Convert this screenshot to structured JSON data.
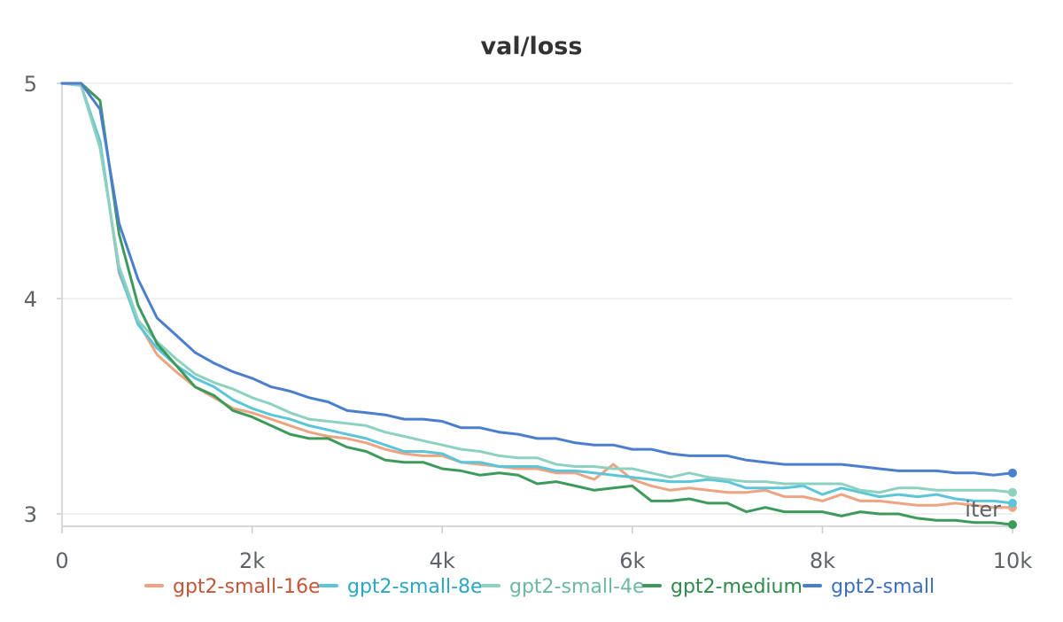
{
  "chart_data": {
    "type": "line",
    "title": "val/loss",
    "xlabel": "iter",
    "ylabel": "",
    "xlim": [
      0,
      10000
    ],
    "ylim": [
      2.94,
      5.0
    ],
    "grid": true,
    "legend_position": "bottom",
    "x_ticks": [
      {
        "value": 0,
        "label": "0"
      },
      {
        "value": 2000,
        "label": "2k"
      },
      {
        "value": 4000,
        "label": "4k"
      },
      {
        "value": 6000,
        "label": "6k"
      },
      {
        "value": 8000,
        "label": "8k"
      },
      {
        "value": 10000,
        "label": "10k"
      }
    ],
    "y_ticks": [
      {
        "value": 5,
        "label": "5"
      },
      {
        "value": 4,
        "label": "4"
      },
      {
        "value": 3,
        "label": "3"
      }
    ],
    "x": [
      0,
      200,
      400,
      600,
      800,
      1000,
      1200,
      1400,
      1600,
      1800,
      2000,
      2200,
      2400,
      2600,
      2800,
      3000,
      3200,
      3400,
      3600,
      3800,
      4000,
      4200,
      4400,
      4600,
      4800,
      5000,
      5200,
      5400,
      5600,
      5800,
      6000,
      6200,
      6400,
      6600,
      6800,
      7000,
      7200,
      7400,
      7600,
      7800,
      8000,
      8200,
      8400,
      8600,
      8800,
      9000,
      9200,
      9400,
      9600,
      9800,
      10000
    ],
    "series": [
      {
        "name": "gpt2-small-16e",
        "color": "#eca483",
        "label_color": "#c4563a",
        "values": [
          5.0,
          4.99,
          4.73,
          4.12,
          3.89,
          3.74,
          3.66,
          3.59,
          3.54,
          3.49,
          3.47,
          3.44,
          3.41,
          3.38,
          3.36,
          3.35,
          3.33,
          3.3,
          3.28,
          3.27,
          3.27,
          3.24,
          3.23,
          3.22,
          3.21,
          3.21,
          3.19,
          3.19,
          3.16,
          3.23,
          3.16,
          3.13,
          3.11,
          3.12,
          3.11,
          3.1,
          3.1,
          3.11,
          3.08,
          3.08,
          3.06,
          3.09,
          3.06,
          3.06,
          3.05,
          3.04,
          3.04,
          3.05,
          3.04,
          3.03,
          3.03
        ]
      },
      {
        "name": "gpt2-small-8e",
        "color": "#5bc5da",
        "label_color": "#2aa8c0",
        "values": [
          5.0,
          4.99,
          4.73,
          4.13,
          3.88,
          3.77,
          3.69,
          3.63,
          3.59,
          3.53,
          3.49,
          3.46,
          3.44,
          3.41,
          3.39,
          3.37,
          3.35,
          3.32,
          3.29,
          3.29,
          3.28,
          3.24,
          3.24,
          3.22,
          3.22,
          3.22,
          3.2,
          3.2,
          3.19,
          3.18,
          3.17,
          3.16,
          3.15,
          3.15,
          3.16,
          3.15,
          3.12,
          3.12,
          3.12,
          3.13,
          3.09,
          3.12,
          3.1,
          3.08,
          3.09,
          3.08,
          3.09,
          3.07,
          3.06,
          3.06,
          3.05
        ]
      },
      {
        "name": "gpt2-small-4e",
        "color": "#8ed1c0",
        "label_color": "#6cb9a6",
        "values": [
          5.0,
          4.99,
          4.7,
          4.15,
          3.9,
          3.8,
          3.72,
          3.65,
          3.61,
          3.58,
          3.54,
          3.51,
          3.47,
          3.44,
          3.43,
          3.42,
          3.41,
          3.38,
          3.36,
          3.34,
          3.32,
          3.3,
          3.29,
          3.27,
          3.26,
          3.26,
          3.23,
          3.22,
          3.22,
          3.21,
          3.21,
          3.19,
          3.17,
          3.19,
          3.17,
          3.16,
          3.15,
          3.15,
          3.14,
          3.14,
          3.14,
          3.14,
          3.11,
          3.1,
          3.12,
          3.12,
          3.11,
          3.11,
          3.11,
          3.11,
          3.1
        ]
      },
      {
        "name": "gpt2-medium",
        "color": "#3e9a5b",
        "label_color": "#2f8a4c",
        "values": [
          5.0,
          5.0,
          4.92,
          4.3,
          3.97,
          3.79,
          3.69,
          3.59,
          3.55,
          3.48,
          3.45,
          3.41,
          3.37,
          3.35,
          3.35,
          3.31,
          3.29,
          3.25,
          3.24,
          3.24,
          3.21,
          3.2,
          3.18,
          3.19,
          3.18,
          3.14,
          3.15,
          3.13,
          3.11,
          3.12,
          3.13,
          3.06,
          3.06,
          3.07,
          3.05,
          3.05,
          3.01,
          3.03,
          3.01,
          3.01,
          3.01,
          2.99,
          3.01,
          3.0,
          3.0,
          2.98,
          2.97,
          2.97,
          2.96,
          2.96,
          2.95
        ]
      },
      {
        "name": "gpt2-small",
        "color": "#4b7fcd",
        "label_color": "#3d6fc1",
        "values": [
          5.0,
          5.0,
          4.88,
          4.35,
          4.09,
          3.91,
          3.83,
          3.75,
          3.7,
          3.66,
          3.63,
          3.59,
          3.57,
          3.54,
          3.52,
          3.48,
          3.47,
          3.46,
          3.44,
          3.44,
          3.43,
          3.4,
          3.4,
          3.38,
          3.37,
          3.35,
          3.35,
          3.33,
          3.32,
          3.32,
          3.3,
          3.3,
          3.28,
          3.27,
          3.27,
          3.27,
          3.25,
          3.24,
          3.23,
          3.23,
          3.23,
          3.23,
          3.22,
          3.21,
          3.2,
          3.2,
          3.2,
          3.19,
          3.19,
          3.18,
          3.19
        ]
      }
    ]
  }
}
